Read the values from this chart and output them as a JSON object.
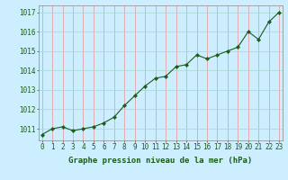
{
  "x": [
    0,
    1,
    2,
    3,
    4,
    5,
    6,
    7,
    8,
    9,
    10,
    11,
    12,
    13,
    14,
    15,
    16,
    17,
    18,
    19,
    20,
    21,
    22,
    23
  ],
  "y": [
    1010.7,
    1011.0,
    1011.1,
    1010.9,
    1011.0,
    1011.1,
    1011.3,
    1011.6,
    1012.2,
    1012.7,
    1013.2,
    1013.6,
    1013.7,
    1014.2,
    1014.3,
    1014.8,
    1014.6,
    1014.8,
    1015.0,
    1015.2,
    1016.0,
    1015.6,
    1016.5,
    1017.0
  ],
  "line_color": "#1a5c1a",
  "marker_color": "#1a5c1a",
  "bg_color": "#cceeff",
  "vgrid_color": "#e8a0a0",
  "hgrid_color": "#b0d8d8",
  "ylabel_ticks": [
    1011,
    1012,
    1013,
    1014,
    1015,
    1016,
    1017
  ],
  "xlabel": "Graphe pression niveau de la mer (hPa)",
  "ylim_min": 1010.4,
  "ylim_max": 1017.35,
  "xlabel_color": "#1a5c1a",
  "tick_color": "#1a5c1a",
  "axis_label_fontsize": 6.5,
  "tick_fontsize": 5.5
}
